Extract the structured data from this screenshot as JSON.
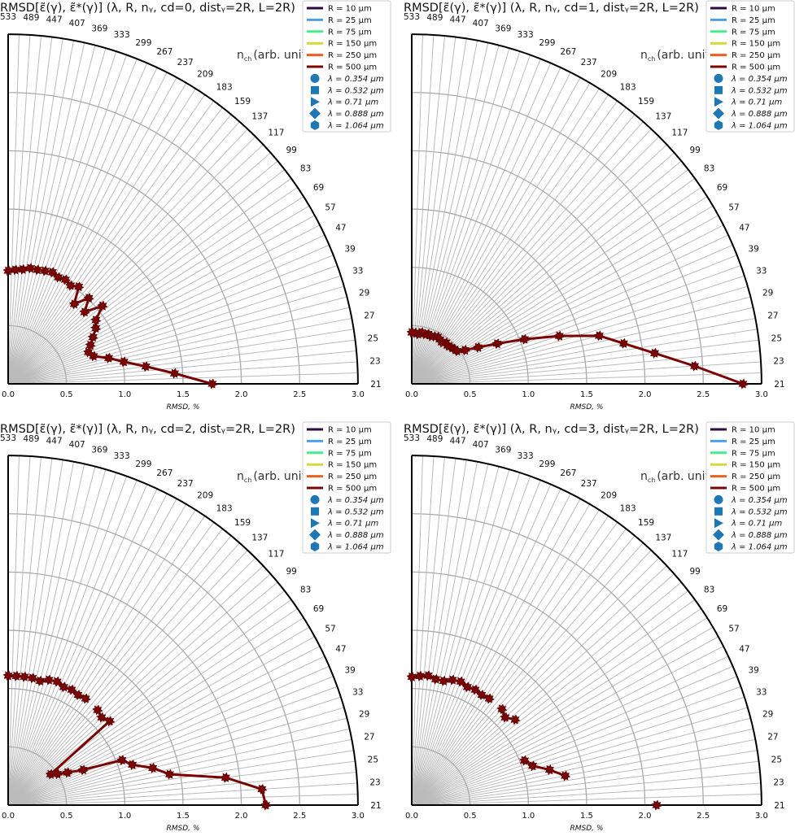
{
  "nch_labels": [
    "21",
    "23",
    "25",
    "27",
    "29",
    "33",
    "39",
    "47",
    "57",
    "69",
    "83",
    "99",
    "117",
    "137",
    "159",
    "183",
    "209",
    "237",
    "267",
    "299",
    "333",
    "369",
    "407",
    "447",
    "489",
    "533"
  ],
  "r_ticks": [
    "0.0",
    "0.5",
    "1.0",
    "1.5",
    "2.0",
    "2.5",
    "3.0"
  ],
  "xlabel": "RMSD, %",
  "nch_axis": {
    "main": "n",
    "sub": "ch",
    "rest": "(arb. units)"
  },
  "legend": {
    "lines": [
      {
        "label": "R = 10 μm",
        "color": "#2d0b3f"
      },
      {
        "label": "R = 25 μm",
        "color": "#4aa0ee"
      },
      {
        "label": "R = 75 μm",
        "color": "#46ee88"
      },
      {
        "label": "R = 150 μm",
        "color": "#d6d83c"
      },
      {
        "label": "R = 250 μm",
        "color": "#ee5f1c"
      },
      {
        "label": "R = 500 μm",
        "color": "#7a0403"
      }
    ],
    "markers": [
      {
        "label": "λ = 0.354 μm",
        "shape": "circle"
      },
      {
        "label": "λ = 0.532 μm",
        "shape": "square"
      },
      {
        "label": "λ = 0.71 μm",
        "shape": "triangle-right"
      },
      {
        "label": "λ = 0.888 μm",
        "shape": "diamond"
      },
      {
        "label": "λ = 1.064 μm",
        "shape": "hexagon"
      }
    ],
    "marker_color": "#1f77b4"
  },
  "series_color": "#7a0403",
  "chart_data": [
    {
      "type": "polar-line",
      "title": "RMSD[ε̃(γ), ε̃*(γ)] (λ, R, nᵧ, cd=0, distᵧ=2R, L=2R)",
      "xlabel": "RMSD, %",
      "theta_label": "n_ch (arb. units)",
      "rlim": [
        0,
        3.0
      ],
      "series": [
        {
          "name": "R = 500 μm",
          "values": [
            1.75,
            1.43,
            1.19,
            1.01,
            0.89,
            0.77,
            0.74,
            0.78,
            0.83,
            0.89,
            0.93,
            1.05,
            0.9,
            1.01,
            0.89,
            1.03,
            1.0,
            1.02,
            1.01,
            1.03,
            1.02,
            1.01,
            1.01,
            0.99,
            0.98,
            0.97
          ]
        }
      ]
    },
    {
      "type": "polar-line",
      "title": "RMSD[ε̃(γ), ε̃*(γ)] (λ, R, nᵧ, cd=1, distᵧ=2R, L=2R)",
      "xlabel": "RMSD, %",
      "theta_label": "n_ch (arb. units)",
      "rlim": [
        0,
        3.0
      ],
      "series": [
        {
          "name": "R = 500 μm",
          "values": [
            2.84,
            2.43,
            2.1,
            1.85,
            1.66,
            1.33,
            1.04,
            0.81,
            0.65,
            0.54,
            0.48,
            0.47,
            0.46,
            0.45,
            0.46,
            0.44,
            0.45,
            0.46,
            0.45,
            0.44,
            0.45,
            0.44,
            0.45,
            0.43,
            0.44,
            0.44
          ]
        }
      ]
    },
    {
      "type": "polar-line",
      "title": "RMSD[ε̃(γ), ε̃*(γ)] (λ, R, nᵧ, cd=2, distᵧ=2R, L=2R)",
      "xlabel": "RMSD, %",
      "theta_label": "n_ch (arb. units)",
      "rlim": [
        0,
        3.0
      ],
      "series": [
        {
          "name": "R = 500 μm",
          "values": [
            2.21,
            2.18,
            1.88,
            1.41,
            1.28,
            1.12,
            1.05,
            0.71,
            0.58,
            0.5,
            0.45,
            1.13,
            1.1,
            1.12,
            null,
            1.13,
            1.12,
            1.13,
            1.12,
            1.14,
            1.13,
            1.1,
            1.11,
            1.11,
            1.11,
            1.11
          ]
        }
      ]
    },
    {
      "type": "polar-line",
      "title": "RMSD[ε̃(γ), ε̃*(γ)] (λ, R, nᵧ, cd=3, distᵧ=2R, L=2R)",
      "xlabel": "RMSD, %",
      "theta_label": "n_ch (arb. units)",
      "rlim": [
        0,
        3.0
      ],
      "series": [
        {
          "name": "R = 500 μm",
          "values": [
            2.1,
            null,
            null,
            1.34,
            1.22,
            1.09,
            1.04,
            null,
            null,
            null,
            null,
            1.15,
            1.1,
            1.13,
            null,
            1.13,
            1.12,
            1.13,
            1.12,
            1.14,
            1.13,
            1.1,
            1.1,
            1.12,
            1.11,
            1.1
          ]
        }
      ]
    }
  ]
}
